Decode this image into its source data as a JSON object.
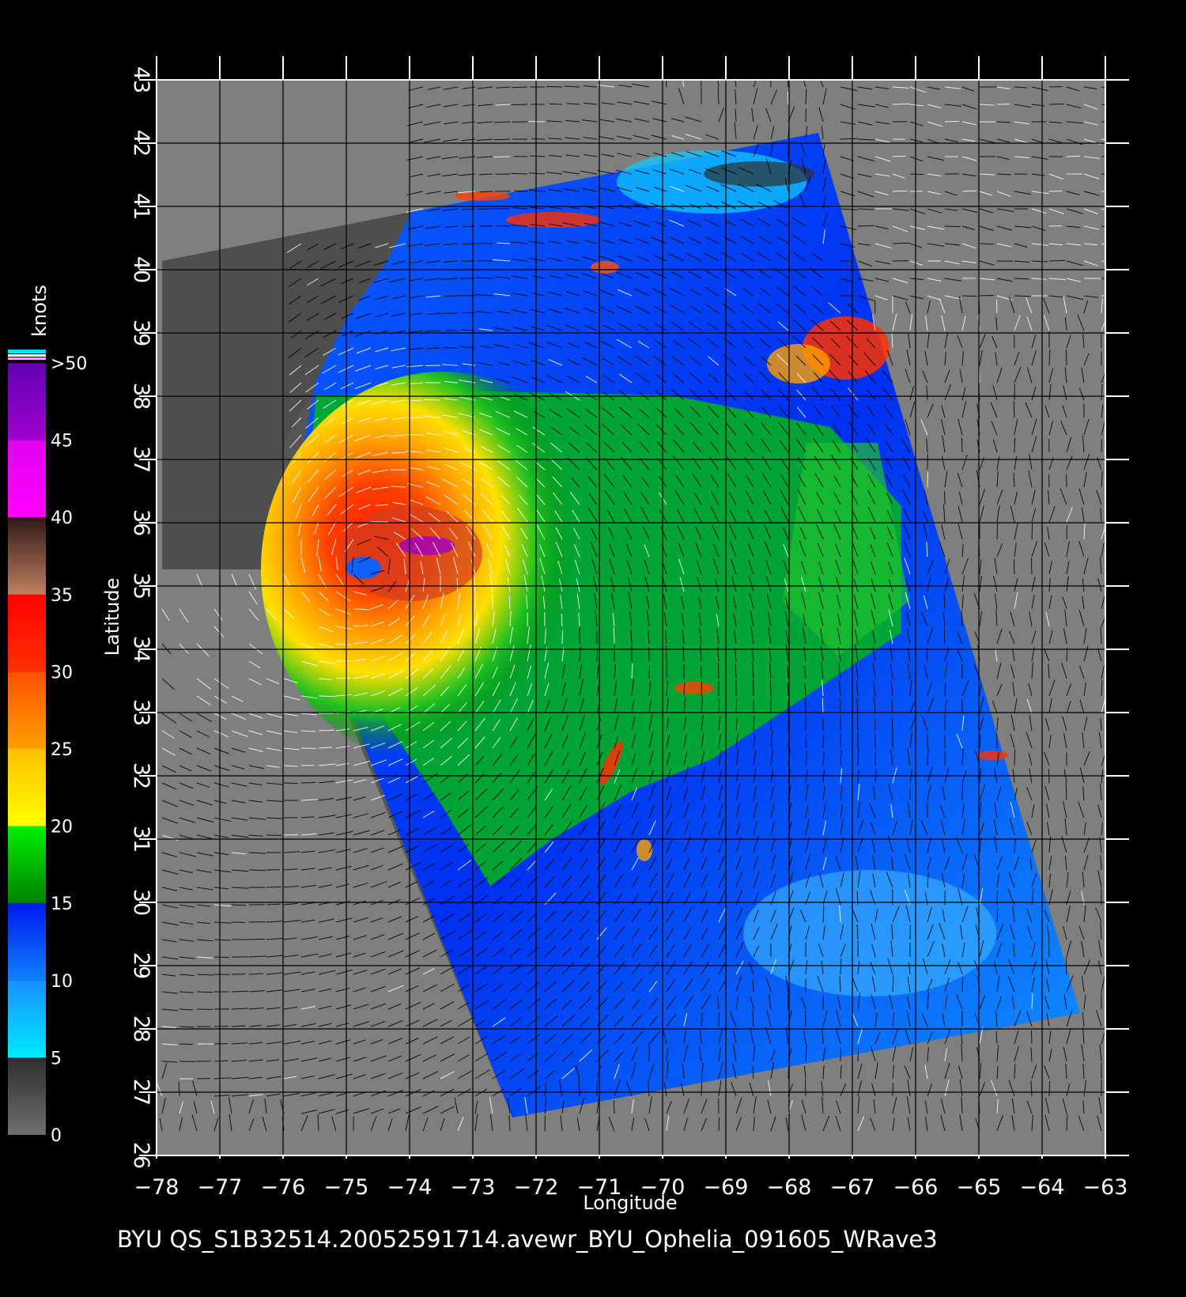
{
  "axes": {
    "x_label": "Longitude",
    "y_label": "Latitude",
    "lon_ticks": [
      "−78",
      "−77",
      "−76",
      "−75",
      "−74",
      "−73",
      "−72",
      "−71",
      "−70",
      "−69",
      "−68",
      "−67",
      "−66",
      "−65",
      "−64",
      "−63"
    ],
    "lat_ticks": [
      "26",
      "27",
      "28",
      "29",
      "30",
      "31",
      "32",
      "33",
      "34",
      "35",
      "36",
      "37",
      "38",
      "39",
      "40",
      "41",
      "42",
      "43"
    ],
    "lon_range": [
      -78,
      -63
    ],
    "lat_range": [
      26,
      43
    ]
  },
  "colorbar": {
    "unit": "knots",
    "labels": [
      "0",
      "5",
      "10",
      "15",
      "20",
      "25",
      "30",
      "35",
      "40",
      "45",
      ">50"
    ],
    "bands": [
      {
        "from": 0,
        "to": 5,
        "color": "#6f6f6f",
        "color2": "#2e2e2e"
      },
      {
        "from": 5,
        "to": 10,
        "color": "#00e8ff",
        "color2": "#1890ff"
      },
      {
        "from": 10,
        "to": 15,
        "color": "#1080ff",
        "color2": "#0018f0"
      },
      {
        "from": 15,
        "to": 20,
        "color": "#008000",
        "color2": "#00f000"
      },
      {
        "from": 20,
        "to": 25,
        "color": "#ffff00",
        "color2": "#ffc000"
      },
      {
        "from": 25,
        "to": 30,
        "color": "#ffa000",
        "color2": "#ff5000"
      },
      {
        "from": 30,
        "to": 35,
        "color": "#ff3000",
        "color2": "#ff0000"
      },
      {
        "from": 35,
        "to": 40,
        "color": "#c08060",
        "color2": "#301818"
      },
      {
        "from": 40,
        "to": 45,
        "color": "#ff00ff",
        "color2": "#e000f0"
      },
      {
        "from": 45,
        "to": 50,
        "color": "#a000d0",
        "color2": "#6000b0"
      }
    ]
  },
  "colors": {
    "background": "#000000",
    "land_grey": "#7f7f7f",
    "swath_dark": "#505050",
    "grid": "#000000"
  },
  "footer": "BYU  QS_S1B32514.20052591714.avewr_BYU_Ophelia_091605_WRave3"
}
